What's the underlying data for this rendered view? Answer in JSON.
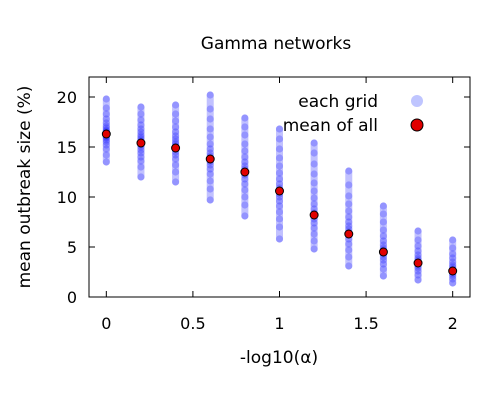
{
  "chart_data": {
    "type": "scatter",
    "title": "Gamma networks",
    "xlabel": "-log10(α)",
    "ylabel": "mean outbreak size (%)",
    "xlim": [
      -0.1,
      2.1
    ],
    "ylim": [
      0,
      22
    ],
    "xticks": [
      "0",
      "0.5",
      "1",
      "1.5",
      "2"
    ],
    "yticks": [
      "0",
      "5",
      "10",
      "15",
      "20"
    ],
    "legend_position": "top-right",
    "series": [
      {
        "name": "each grid",
        "color": "#1f1fff",
        "values_by_x": [
          {
            "x": 0.0,
            "min": 13.5,
            "max": 19.8,
            "points": [
              13.5,
              14.2,
              14.8,
              15.2,
              15.5,
              15.7,
              15.9,
              16.0,
              16.1,
              16.2,
              16.3,
              16.4,
              16.5,
              16.6,
              16.7,
              16.9,
              17.1,
              17.4,
              17.8,
              18.3,
              18.9,
              19.8
            ]
          },
          {
            "x": 0.2,
            "min": 12.0,
            "max": 19.0,
            "points": [
              12.0,
              13.0,
              13.6,
              14.0,
              14.4,
              14.7,
              15.0,
              15.2,
              15.4,
              15.5,
              15.6,
              15.8,
              16.0,
              16.2,
              16.5,
              16.8,
              17.2,
              17.7,
              18.3,
              19.0
            ]
          },
          {
            "x": 0.4,
            "min": 11.5,
            "max": 19.2,
            "points": [
              11.5,
              12.5,
              13.2,
              13.8,
              14.2,
              14.5,
              14.8,
              15.0,
              15.1,
              15.3,
              15.5,
              15.8,
              16.1,
              16.5,
              17.0,
              17.6,
              18.3,
              19.2
            ]
          },
          {
            "x": 0.6,
            "min": 9.7,
            "max": 20.2,
            "points": [
              9.7,
              10.8,
              11.6,
              12.3,
              12.8,
              13.2,
              13.5,
              13.7,
              13.9,
              14.1,
              14.4,
              14.8,
              15.3,
              16.0,
              16.8,
              17.8,
              18.8,
              20.2
            ]
          },
          {
            "x": 0.8,
            "min": 8.1,
            "max": 17.9,
            "points": [
              8.1,
              9.2,
              10.0,
              10.7,
              11.3,
              11.8,
              12.2,
              12.5,
              12.8,
              13.1,
              13.5,
              14.0,
              14.6,
              15.3,
              16.2,
              17.0,
              17.9
            ]
          },
          {
            "x": 1.0,
            "min": 5.8,
            "max": 16.8,
            "points": [
              5.8,
              7.0,
              7.8,
              8.5,
              9.1,
              9.6,
              10.0,
              10.3,
              10.6,
              10.9,
              11.3,
              11.8,
              12.4,
              13.1,
              13.9,
              14.8,
              15.8,
              16.8
            ]
          },
          {
            "x": 1.2,
            "min": 4.8,
            "max": 15.4,
            "points": [
              4.8,
              5.6,
              6.3,
              6.9,
              7.4,
              7.8,
              8.1,
              8.4,
              8.8,
              9.3,
              9.9,
              10.6,
              11.4,
              12.3,
              13.3,
              14.4,
              15.4
            ]
          },
          {
            "x": 1.4,
            "min": 3.1,
            "max": 12.6,
            "points": [
              3.1,
              4.0,
              4.7,
              5.3,
              5.8,
              6.2,
              6.5,
              6.8,
              7.1,
              7.5,
              8.0,
              8.6,
              9.3,
              10.1,
              11.2,
              12.6
            ]
          },
          {
            "x": 1.6,
            "min": 2.1,
            "max": 9.1,
            "points": [
              2.1,
              2.8,
              3.3,
              3.7,
              4.0,
              4.3,
              4.5,
              4.7,
              4.9,
              5.2,
              5.6,
              6.1,
              6.7,
              7.5,
              8.3,
              9.1
            ]
          },
          {
            "x": 1.8,
            "min": 1.7,
            "max": 6.6,
            "points": [
              1.7,
              2.2,
              2.6,
              2.9,
              3.1,
              3.3,
              3.5,
              3.7,
              3.9,
              4.2,
              4.6,
              5.1,
              5.7,
              6.6
            ]
          },
          {
            "x": 2.0,
            "min": 1.4,
            "max": 5.7,
            "points": [
              1.4,
              1.8,
              2.1,
              2.3,
              2.5,
              2.6,
              2.8,
              3.0,
              3.2,
              3.5,
              3.9,
              4.3,
              4.9,
              5.7
            ]
          }
        ]
      },
      {
        "name": "mean of all",
        "color": "#e00000",
        "x": [
          0.0,
          0.2,
          0.4,
          0.6,
          0.8,
          1.0,
          1.2,
          1.4,
          1.6,
          1.8,
          2.0
        ],
        "y": [
          16.3,
          15.4,
          14.9,
          13.8,
          12.5,
          10.6,
          8.2,
          6.3,
          4.5,
          3.4,
          2.6
        ]
      }
    ],
    "legend": [
      {
        "label": "each grid",
        "marker": "light-blue-circle"
      },
      {
        "label": "mean of all",
        "marker": "red-circle"
      }
    ]
  }
}
